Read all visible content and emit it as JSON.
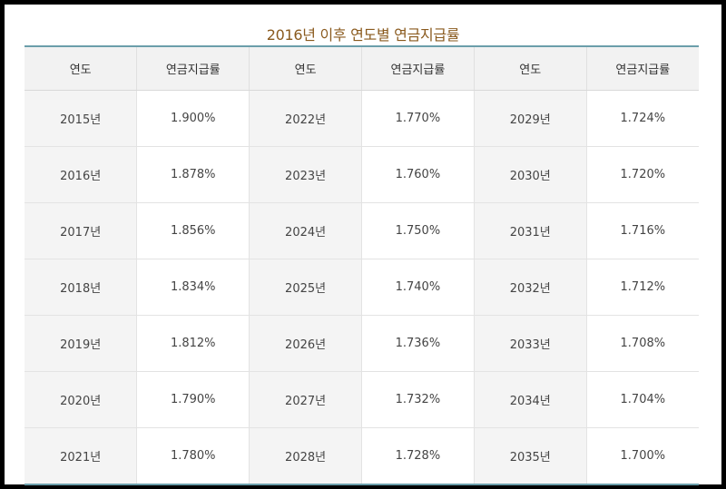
{
  "title": "2016년 이후 연도별 연금지급률",
  "headers": [
    "연도",
    "연금지급률",
    "연도",
    "연금지급률",
    "연도",
    "연금지급률"
  ],
  "rows": [
    [
      "2015년",
      "1.900%",
      "2022년",
      "1.770%",
      "2029년",
      "1.724%"
    ],
    [
      "2016년",
      "1.878%",
      "2023년",
      "1.760%",
      "2030년",
      "1.720%"
    ],
    [
      "2017년",
      "1.856%",
      "2024년",
      "1.750%",
      "2031년",
      "1.716%"
    ],
    [
      "2018년",
      "1.834%",
      "2025년",
      "1.740%",
      "2032년",
      "1.712%"
    ],
    [
      "2019년",
      "1.812%",
      "2026년",
      "1.736%",
      "2033년",
      "1.708%"
    ],
    [
      "2020년",
      "1.790%",
      "2027년",
      "1.732%",
      "2034년",
      "1.704%"
    ],
    [
      "2021년",
      "1.780%",
      "2028년",
      "1.728%",
      "2035년",
      "1.700%"
    ]
  ]
}
